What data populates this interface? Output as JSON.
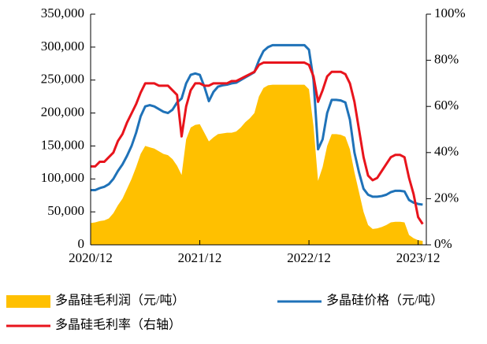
{
  "chart_data": {
    "type": "combo",
    "categories": [
      "2020/12",
      null,
      null,
      null,
      null,
      null,
      null,
      null,
      null,
      null,
      null,
      null,
      null,
      null,
      null,
      null,
      null,
      null,
      null,
      null,
      null,
      null,
      null,
      null,
      "2021/12",
      null,
      null,
      null,
      null,
      null,
      null,
      null,
      null,
      null,
      null,
      null,
      null,
      null,
      null,
      null,
      null,
      null,
      null,
      null,
      null,
      null,
      null,
      null,
      "2022/12",
      null,
      null,
      null,
      null,
      null,
      null,
      null,
      null,
      null,
      null,
      null,
      null,
      null,
      null,
      null,
      null,
      null,
      null,
      null,
      null,
      null,
      null,
      null,
      "2023/12",
      null
    ],
    "series": [
      {
        "name": "多晶硅毛利润（元/吨）",
        "kind": "area",
        "color": "#FFC000",
        "values": [
          33000,
          34000,
          36000,
          37000,
          40000,
          48000,
          60000,
          70000,
          85000,
          100000,
          118000,
          138000,
          150000,
          148000,
          146000,
          142000,
          138000,
          136000,
          130000,
          120000,
          106000,
          160000,
          178000,
          182000,
          183000,
          170000,
          157000,
          163000,
          168000,
          169000,
          170000,
          170000,
          172000,
          178000,
          186000,
          192000,
          200000,
          225000,
          238000,
          242000,
          243000,
          243000,
          243000,
          243000,
          243000,
          243000,
          243000,
          243000,
          236000,
          180000,
          97000,
          118000,
          150000,
          168000,
          168000,
          167000,
          164000,
          145000,
          110000,
          80000,
          50000,
          30000,
          24000,
          25000,
          27000,
          30000,
          34000,
          35000,
          35000,
          34000,
          15000,
          10000,
          7000,
          6000
        ]
      },
      {
        "name": "多晶硅价格（元/吨）",
        "kind": "line",
        "color": "#1F72B8",
        "values": [
          83000,
          83000,
          86000,
          88000,
          92000,
          100000,
          112000,
          122000,
          135000,
          150000,
          170000,
          195000,
          210000,
          212000,
          210000,
          206000,
          202000,
          200000,
          205000,
          216000,
          222000,
          245000,
          258000,
          260000,
          258000,
          240000,
          218000,
          232000,
          240000,
          242000,
          243000,
          245000,
          246000,
          250000,
          254000,
          258000,
          262000,
          280000,
          294000,
          300000,
          303000,
          303000,
          303000,
          303000,
          303000,
          303000,
          303000,
          303000,
          296000,
          250000,
          145000,
          160000,
          200000,
          220000,
          220000,
          219000,
          216000,
          190000,
          140000,
          110000,
          85000,
          76000,
          73000,
          73000,
          74000,
          76000,
          80000,
          82000,
          82000,
          81000,
          68000,
          64000,
          62000,
          61000
        ]
      },
      {
        "name": "多晶硅毛利率（右轴）",
        "kind": "line",
        "axis": "y2",
        "color": "#E8141C",
        "values": [
          34,
          34,
          36,
          36,
          38,
          40,
          45,
          48,
          53,
          57,
          61,
          66,
          70,
          70,
          70,
          69,
          69,
          69,
          67,
          65,
          47,
          60,
          67,
          70,
          70,
          69,
          69,
          70,
          70,
          70,
          70,
          71,
          71,
          72,
          73,
          74,
          75,
          78,
          79,
          79,
          79,
          79,
          79,
          79,
          79,
          79,
          79,
          79,
          78,
          73,
          62,
          67,
          73,
          75,
          75,
          75,
          74,
          70,
          62,
          50,
          38,
          30,
          28,
          29,
          32,
          35,
          38,
          39,
          39,
          38,
          29,
          22,
          12,
          9
        ]
      }
    ],
    "ylim": [
      0,
      350000
    ],
    "yticks": [
      0,
      {
        "value": 50000,
        "label": "50,000"
      },
      {
        "value": 100000,
        "label": "100,000"
      },
      {
        "value": 150000,
        "label": "150,000"
      },
      {
        "value": 200000,
        "label": "200,000"
      },
      {
        "value": 250000,
        "label": "250,000"
      },
      {
        "value": 300000,
        "label": "300,000"
      },
      {
        "value": 350000,
        "label": "350,000"
      }
    ],
    "y2lim": [
      0,
      100
    ],
    "y2ticks": [
      {
        "value": 0,
        "label": "0%"
      },
      {
        "value": 20,
        "label": "20%"
      },
      {
        "value": 40,
        "label": "40%"
      },
      {
        "value": 60,
        "label": "60%"
      },
      {
        "value": 80,
        "label": "80%"
      },
      {
        "value": 100,
        "label": "100%"
      }
    ],
    "legend": "bottom"
  }
}
